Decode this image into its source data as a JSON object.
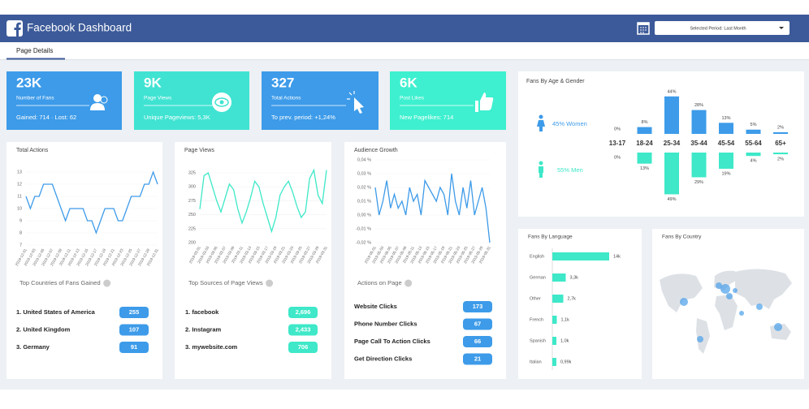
{
  "header": {
    "title": "Facebook Dashboard",
    "period": "Selected Period: Last Month"
  },
  "tabs": [
    "Page Details"
  ],
  "kpis": [
    {
      "value": "23K",
      "label": "Number of Fans",
      "sub": "Gained: 714 · Lost: 62",
      "color": "#3d9be9"
    },
    {
      "value": "9K",
      "label": "Page Views",
      "sub": "Unique Pageviews: 5,3K",
      "color": "#40e3d2"
    },
    {
      "value": "327",
      "label": "Total Actions",
      "sub": "To prev. period: +1,24%",
      "color": "#3d9be9"
    },
    {
      "value": "6K",
      "label": "Post Likes",
      "sub": "New Pagelikes: 714",
      "color": "#3ef0cf"
    }
  ],
  "chart_data": [
    {
      "type": "line",
      "title": "Total Actions",
      "color": "#3d9be9",
      "grid": true,
      "categories": [
        "2019-12-01",
        null,
        "2019-12-03",
        null,
        "2019-12-05",
        null,
        "2019-12-07",
        null,
        "2019-12-09",
        null,
        "2019-12-11",
        null,
        "2019-12-13",
        null,
        "2019-12-15",
        null,
        "2019-12-17",
        null,
        "2019-12-19",
        null,
        "2019-12-21",
        null,
        "2019-12-23",
        null,
        "2019-12-25",
        null,
        "2019-12-27",
        null,
        "2019-12-29",
        null,
        "2019-12-31"
      ],
      "values": [
        11,
        10,
        11,
        11,
        12,
        12,
        12,
        11,
        10,
        9,
        10,
        10,
        10,
        10,
        9,
        9,
        8,
        9,
        10,
        10,
        10,
        9,
        9,
        10,
        11,
        11,
        11,
        12,
        12,
        13,
        12
      ],
      "ylim": [
        7,
        13
      ],
      "yticks": [
        7,
        8,
        9,
        10,
        11,
        12,
        13
      ]
    },
    {
      "type": "line",
      "title": "Page Views",
      "color": "#3ee8c8",
      "grid": true,
      "categories": [
        "2019-03-01",
        null,
        "2019-03-03",
        null,
        "2019-03-05",
        null,
        "2019-03-07",
        null,
        "2019-03-09",
        null,
        "2019-03-11",
        null,
        "2019-03-13",
        null,
        "2019-03-15",
        null,
        "2019-03-17",
        null,
        "2019-03-19",
        null,
        "2019-03-21",
        null,
        "2019-03-23",
        null,
        "2019-03-25",
        null,
        "2019-03-27",
        null,
        "2019-03-29",
        null,
        "2019-03-31"
      ],
      "values": [
        260,
        320,
        325,
        300,
        275,
        255,
        280,
        305,
        295,
        260,
        235,
        255,
        280,
        310,
        300,
        270,
        245,
        220,
        245,
        285,
        300,
        310,
        290,
        265,
        245,
        255,
        315,
        330,
        285,
        270,
        330
      ],
      "ylim": [
        200,
        325
      ],
      "yticks": [
        200,
        225,
        250,
        275,
        300,
        325
      ]
    },
    {
      "type": "line",
      "title": "Audience Growth",
      "color": "#3d9be9",
      "grid": true,
      "categories": [
        "2019-05-01",
        null,
        "2019-05-03",
        null,
        "2019-05-05",
        null,
        "2019-05-07",
        null,
        "2019-05-09",
        null,
        "2019-05-11",
        null,
        "2019-05-13",
        null,
        "2019-05-15",
        null,
        "2019-05-17",
        null,
        "2019-05-19",
        null,
        "2019-05-21",
        null,
        "2019-05-23",
        null,
        "2019-05-25",
        null,
        "2019-05-27",
        null,
        "2019-05-29",
        null,
        "2019-05-31"
      ],
      "values": [
        0.02,
        0,
        0.01,
        0.025,
        0.005,
        0.015,
        0.005,
        0.01,
        0,
        0.02,
        0.01,
        0.015,
        0,
        0.025,
        0.02,
        0.015,
        0.01,
        0.02,
        0.015,
        0,
        0.03,
        0.01,
        0,
        0.02,
        0.005,
        0.025,
        0,
        0.01,
        0.02,
        0.005,
        -0.02
      ],
      "ylim": [
        -0.02,
        0.04
      ],
      "yticks": [
        {
          "value": -0.02,
          "label": "-0,02 %"
        },
        {
          "value": -0.01,
          "label": "-0,01 %"
        },
        {
          "value": 0,
          "label": "0,00 %"
        },
        {
          "value": 0.01,
          "label": "0,01 %"
        },
        {
          "value": 0.02,
          "label": "0,02 %"
        },
        {
          "value": 0.03,
          "label": "0,03 %"
        },
        {
          "value": 0.04,
          "label": "0,04 %"
        }
      ]
    },
    {
      "type": "bar",
      "title": "Fans By Age & Gender",
      "categories": [
        "13-17",
        "18-24",
        "25-34",
        "35-44",
        "45-54",
        "55-64",
        "65+"
      ],
      "series": [
        {
          "name": "45% Women",
          "color": "#3d9be9",
          "values": [
            0,
            8,
            44,
            28,
            13,
            5,
            2
          ],
          "value_labels": [
            "0%",
            "8%",
            "44%",
            "28%",
            "13%",
            "5%",
            "2%"
          ]
        },
        {
          "name": "55% Men",
          "color": "#3ee8c8",
          "values": [
            0,
            13,
            49,
            29,
            19,
            4,
            2
          ],
          "value_labels": [
            "0%",
            "13%",
            "49%",
            "29%",
            "19%",
            "4%",
            "2%"
          ]
        }
      ]
    },
    {
      "type": "hbar",
      "title": "Fans By Language",
      "color": "#3ee8c8",
      "categories": [
        "English",
        "German",
        "Other",
        "French",
        "Spanish",
        "Italian"
      ],
      "values": [
        14000,
        3300,
        2700,
        1100,
        1000,
        990
      ],
      "value_labels": [
        "14k",
        "3,3k",
        "2,7k",
        "1,1k",
        "1,0k",
        "0,99k"
      ]
    }
  ],
  "lists": [
    {
      "title": "Top Countries of Fans Gained",
      "color": "#3d9be9",
      "items": [
        {
          "label": "1. United States of America",
          "value": 255
        },
        {
          "label": "2. United Kingdom",
          "value": 107
        },
        {
          "label": "3. Germany",
          "value": 91
        }
      ]
    },
    {
      "title": "Top Sources of Page Views",
      "color": "#3ee8c8",
      "items": [
        {
          "label": "1. facebook",
          "value": 2696,
          "value_label": "2,696"
        },
        {
          "label": "2. Instagram",
          "value": 2433,
          "value_label": "2,433"
        },
        {
          "label": "3. mywebsite.com",
          "value": 706
        }
      ]
    },
    {
      "title": "Actions on Page",
      "color": "#3d9be9",
      "items": [
        {
          "label": "Website Clicks",
          "value": 173
        },
        {
          "label": "Phone Number Clicks",
          "value": 67
        },
        {
          "label": "Page Call To Action Clicks",
          "value": 66
        },
        {
          "label": "Get Direction Clicks",
          "value": 21
        }
      ]
    }
  ],
  "country_map": {
    "title": "Fans By Country"
  }
}
